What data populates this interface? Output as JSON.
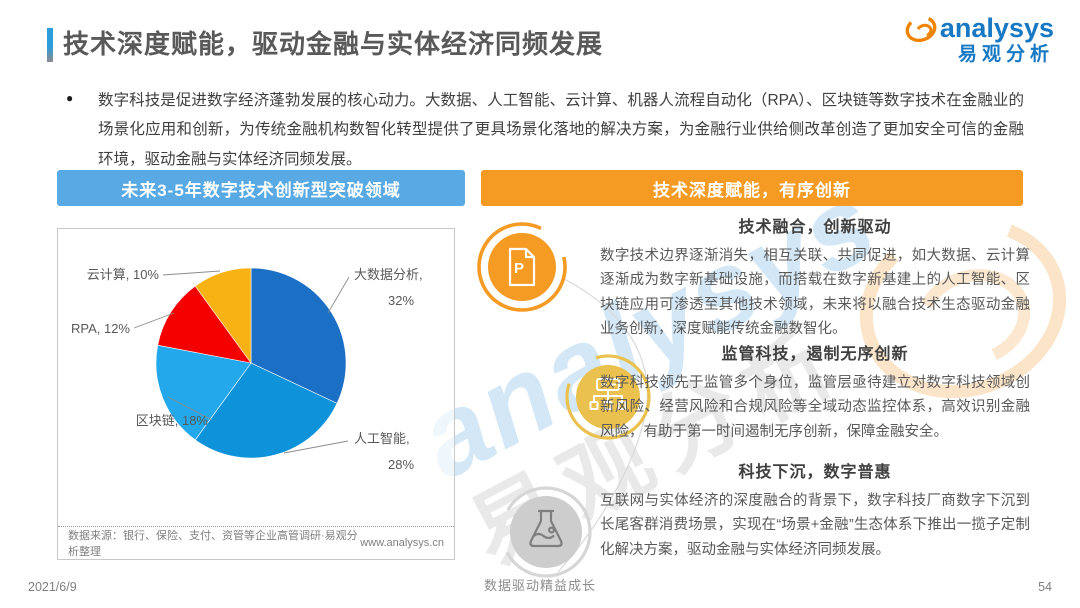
{
  "header": {
    "title": "技术深度赋能，驱动金融与实体经济同频发展",
    "logo": {
      "brand": "analysys",
      "brand_cn": "易观分析"
    }
  },
  "intro": {
    "bullet": "●",
    "text": "数字科技是促进数字经济蓬勃发展的核心动力。大数据、人工智能、云计算、机器人流程自动化（RPA）、区块链等数字技术在金融业的场景化应用和创新，为传统金融机构数智化转型提供了更具场景化落地的解决方案，为金融行业供给侧改革创造了更加安全可信的金融环境，驱动金融与实体经济同频发展。"
  },
  "left_panel": {
    "header": "未来3-5年数字技术创新型突破领域",
    "source": "数据来源：银行、保险、支付、资管等企业高管调研·易观分析整理",
    "website": "www.analysys.cn"
  },
  "right_panel": {
    "header": "技术深度赋能，有序创新",
    "sections": [
      {
        "icon": "document-p-icon",
        "title": "技术融合，创新驱动",
        "body": "数字技术边界逐渐消失，相互关联、共同促进，如大数据、云计算逐渐成为数字新基础设施，而搭载在数字新基建上的人工智能、区块链应用可渗透至其他技术领域，未来将以融合技术生态驱动金融业务创新，深度赋能传统金融数智化。"
      },
      {
        "icon": "sitemap-icon",
        "title": "监管科技，遏制无序创新",
        "body": "数字科技领先于监管多个身位，监管层亟待建立对数字科技领域创新风险、经营风险和合规风险等全域动态监控体系，高效识别金融风险，有助于第一时间遏制无序创新，保障金融安全。"
      },
      {
        "icon": "flask-icon",
        "title": "科技下沉，数字普惠",
        "body": "互联网与实体经济的深度融合的背景下，数字科技厂商数字下沉到长尾客群消费场景，实现在“场景+金融”生态体系下推出一揽子定制化解决方案，驱动金融与实体经济同频发展。"
      }
    ]
  },
  "chart_data": {
    "type": "pie",
    "title": "未来3-5年数字技术创新型突破领域",
    "labels": [
      "大数据分析",
      "人工智能",
      "区块链",
      "RPA",
      "云计算"
    ],
    "values": [
      32,
      28,
      18,
      12,
      10
    ],
    "unit": "%",
    "colors": [
      "#1b6fc4",
      "#0e93db",
      "#23a8ec",
      "#f50000",
      "#f9b213"
    ],
    "start": "top",
    "direction": "clockwise",
    "legend": false,
    "data_label_format": "name, value%",
    "source": "数据来源：银行、保险、支付、资管等企业高管调研·易观分析整理"
  },
  "watermark": {
    "brand": "analysys",
    "brand_cn": "易观分析"
  },
  "footer": {
    "date": "2021/6/9",
    "motto": "数据驱动精益成长",
    "page": "54"
  },
  "colors": {
    "accent_blue": "#58a9e4",
    "accent_orange": "#f59a23",
    "icon_gold": "#eac14e",
    "icon_gray": "#cdcdcd"
  }
}
